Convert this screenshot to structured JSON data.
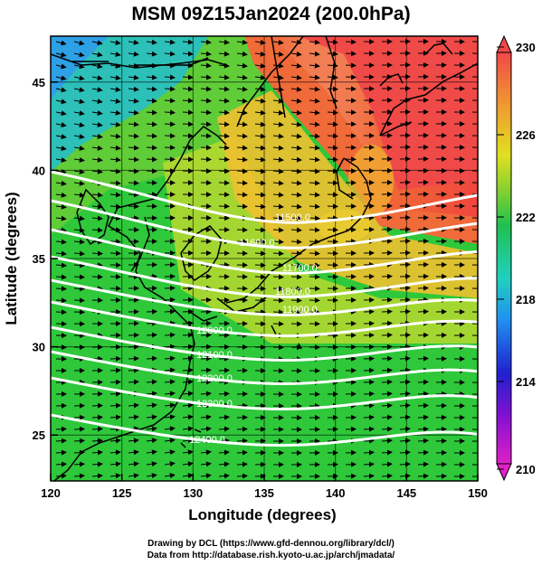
{
  "title": "MSM 09Z15Jan2024 (200.0hPa)",
  "footer": {
    "credit": "Drawing by DCL (https://www.gfd-dennou.org/library/dcl/)",
    "source": "Data from http://database.rish.kyoto-u.ac.jp/arch/jmadata/"
  },
  "map": {
    "xlabel": "Longitude (degrees)",
    "ylabel": "Latitude (degrees)",
    "lon_range": [
      120,
      150
    ],
    "lat_range": [
      22.4,
      47.6
    ],
    "lon_ticks": [
      "120",
      "125",
      "130",
      "135",
      "140",
      "145",
      "150"
    ],
    "lat_ticks": [
      "25",
      "30",
      "35",
      "40",
      "45"
    ]
  },
  "colorbar": {
    "range": [
      210,
      230
    ],
    "tick_labels": [
      "230",
      "226",
      "222",
      "218",
      "214",
      "210"
    ]
  },
  "contours": [
    {
      "label": "11500.0",
      "lon": 137.0
    },
    {
      "label": "11600.0",
      "lon": 134.5
    },
    {
      "label": "11700.0",
      "lon": 137.5
    },
    {
      "label": "11800.0",
      "lon": 137.0
    },
    {
      "label": "11900.0",
      "lon": 137.5
    },
    {
      "label": "12000.0",
      "lon": 131.5
    },
    {
      "label": "12100.0",
      "lon": 131.5
    },
    {
      "label": "12200.0",
      "lon": 131.5
    },
    {
      "label": "12300.0",
      "lon": 131.5
    },
    {
      "label": "12400.0",
      "lon": 131.0
    }
  ]
}
